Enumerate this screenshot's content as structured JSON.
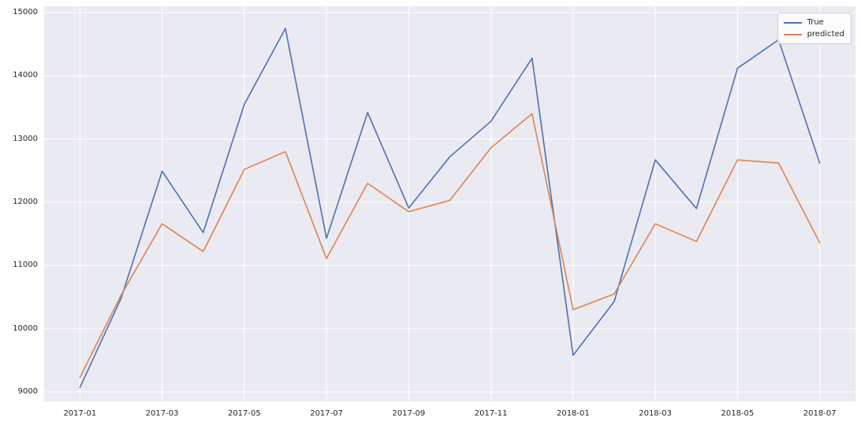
{
  "chart_data": {
    "type": "line",
    "title": "",
    "xlabel": "",
    "ylabel": "",
    "x": [
      "2017-01",
      "2017-02",
      "2017-03",
      "2017-04",
      "2017-05",
      "2017-06",
      "2017-07",
      "2017-08",
      "2017-09",
      "2017-10",
      "2017-11",
      "2017-12",
      "2018-01",
      "2018-02",
      "2018-03",
      "2018-04",
      "2018-05",
      "2018-06",
      "2018-07"
    ],
    "series": [
      {
        "name": "True",
        "color": "#4c72b0",
        "values": [
          9070,
          10480,
          12490,
          11520,
          13550,
          14750,
          11430,
          13420,
          11910,
          12720,
          13280,
          14280,
          9580,
          10430,
          12670,
          11900,
          14120,
          14570,
          12620
        ]
      },
      {
        "name": "predicted",
        "color": "#dd8452",
        "values": [
          9230,
          10530,
          11660,
          11220,
          12520,
          12800,
          11110,
          12300,
          11850,
          12030,
          12860,
          13400,
          10300,
          10550,
          11660,
          11380,
          12670,
          12620,
          11360
        ]
      }
    ],
    "yticks": [
      9000,
      10000,
      11000,
      12000,
      13000,
      14000,
      15000
    ],
    "xtick_labels": [
      "2017-01",
      "2017-03",
      "2017-05",
      "2017-07",
      "2017-09",
      "2017-11",
      "2018-01",
      "2018-03",
      "2018-05",
      "2018-07"
    ],
    "xtick_indices": [
      0,
      2,
      4,
      6,
      8,
      10,
      12,
      14,
      16,
      18
    ],
    "ylim": [
      8850,
      15100
    ],
    "x_edge_margin_months": 0.87,
    "grid": true,
    "legend_position": "upper right",
    "plot_background": "#eaeaf2",
    "grid_color": "#ffffff",
    "tick_text_color": "#262626"
  }
}
